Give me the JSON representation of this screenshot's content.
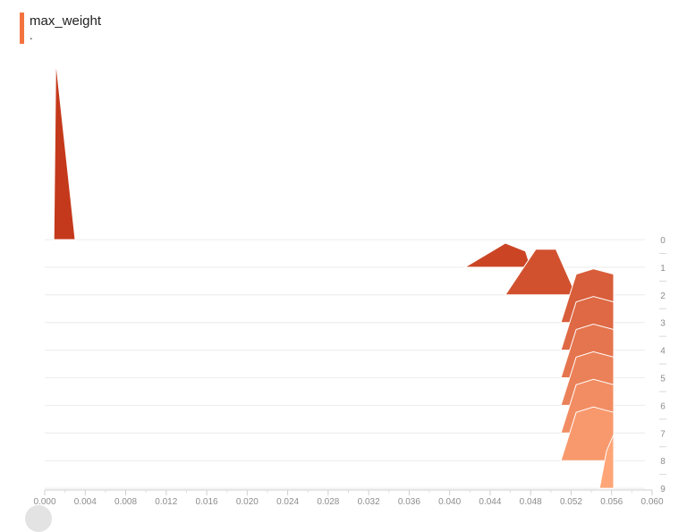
{
  "card": {
    "title": "max_weight",
    "subtitle": "."
  },
  "chart_data": {
    "type": "histogram-offset",
    "title": "max_weight",
    "xlim": [
      0.0,
      0.06
    ],
    "x_ticks": [
      "0.000",
      "0.004",
      "0.008",
      "0.012",
      "0.016",
      "0.020",
      "0.024",
      "0.028",
      "0.032",
      "0.036",
      "0.040",
      "0.044",
      "0.048",
      "0.052",
      "0.056",
      "0.060"
    ],
    "steps": [
      0,
      1,
      2,
      3,
      4,
      5,
      6,
      7,
      8,
      9
    ],
    "color_start": "#c4391b",
    "color_end": "#ffa577",
    "histograms": [
      {
        "step": 0,
        "points": [
          [
            0.0009,
            0
          ],
          [
            0.0011,
            1.0
          ],
          [
            0.003,
            0
          ]
        ]
      },
      {
        "step": 1,
        "points": [
          [
            0.0415,
            0
          ],
          [
            0.0455,
            0.45
          ],
          [
            0.0475,
            0.3
          ],
          [
            0.048,
            0
          ]
        ]
      },
      {
        "step": 2,
        "points": [
          [
            0.0455,
            0
          ],
          [
            0.0485,
            0.85
          ],
          [
            0.0505,
            0.85
          ],
          [
            0.0525,
            0
          ]
        ]
      },
      {
        "step": 3,
        "points": [
          [
            0.051,
            0
          ],
          [
            0.0525,
            0.9
          ],
          [
            0.0542,
            1.0
          ],
          [
            0.0562,
            0.9
          ],
          [
            0.0562,
            0
          ]
        ]
      },
      {
        "step": 4,
        "points": [
          [
            0.051,
            0
          ],
          [
            0.0525,
            0.9
          ],
          [
            0.0542,
            1.0
          ],
          [
            0.0562,
            0.9
          ],
          [
            0.0562,
            0
          ]
        ]
      },
      {
        "step": 5,
        "points": [
          [
            0.051,
            0
          ],
          [
            0.0525,
            0.9
          ],
          [
            0.0542,
            1.0
          ],
          [
            0.0562,
            0.9
          ],
          [
            0.0562,
            0
          ]
        ]
      },
      {
        "step": 6,
        "points": [
          [
            0.051,
            0
          ],
          [
            0.0525,
            0.9
          ],
          [
            0.0542,
            1.0
          ],
          [
            0.0562,
            0.9
          ],
          [
            0.0562,
            0
          ]
        ]
      },
      {
        "step": 7,
        "points": [
          [
            0.051,
            0
          ],
          [
            0.0525,
            0.9
          ],
          [
            0.0542,
            1.0
          ],
          [
            0.0562,
            0.9
          ],
          [
            0.0562,
            0
          ]
        ]
      },
      {
        "step": 8,
        "points": [
          [
            0.051,
            0
          ],
          [
            0.0525,
            0.9
          ],
          [
            0.0542,
            1.0
          ],
          [
            0.0562,
            0.9
          ],
          [
            0.0562,
            0
          ]
        ]
      },
      {
        "step": 9,
        "points": [
          [
            0.0548,
            0
          ],
          [
            0.0555,
            0.7
          ],
          [
            0.0562,
            1.0
          ],
          [
            0.0562,
            0
          ]
        ]
      }
    ]
  }
}
